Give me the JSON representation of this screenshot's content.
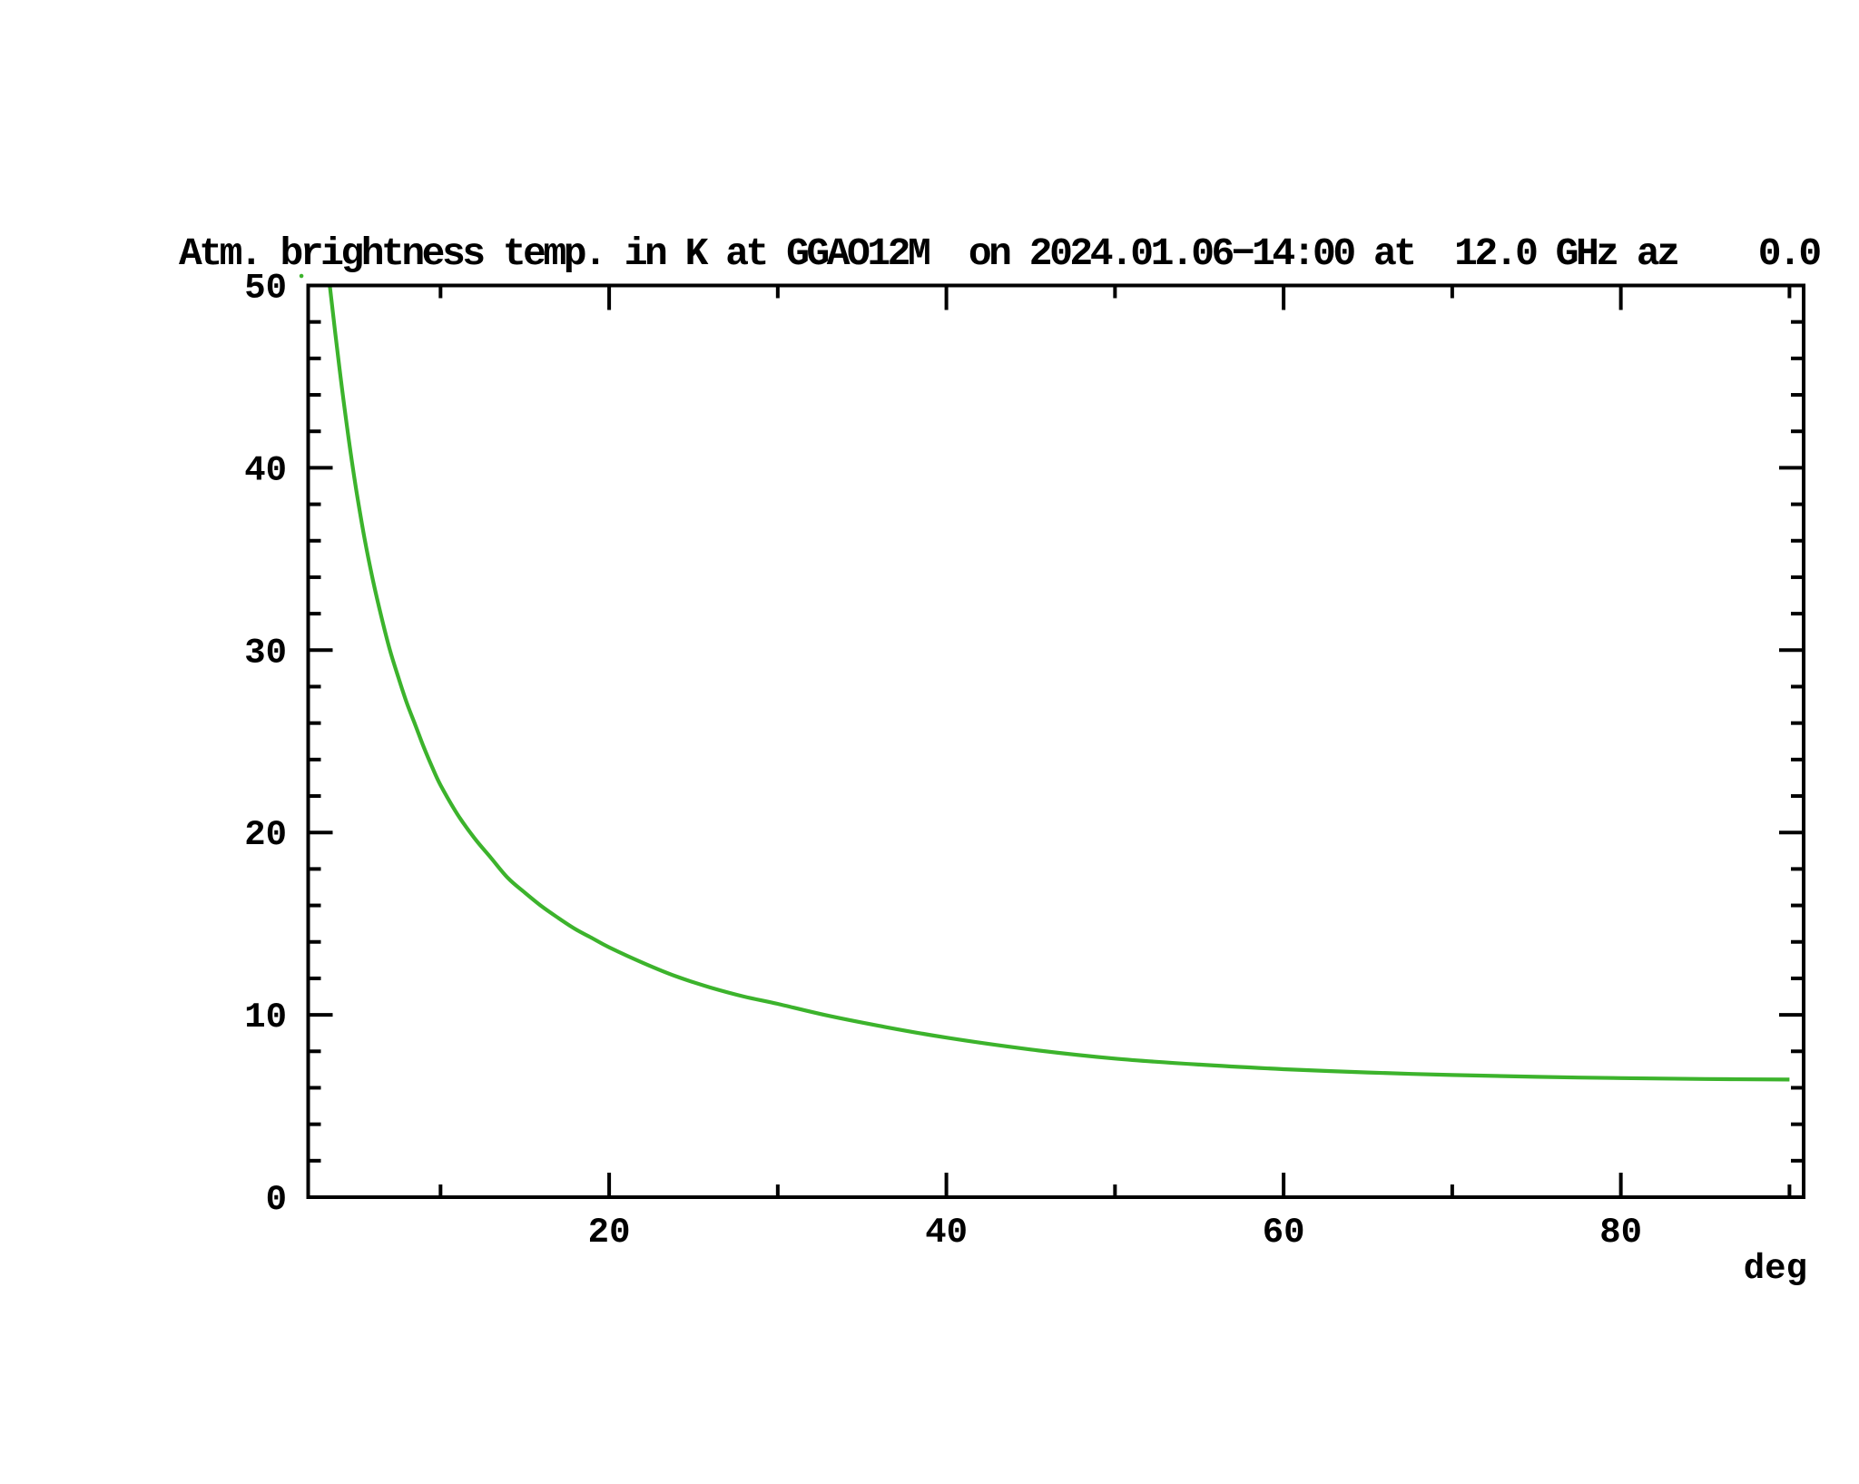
{
  "title": "Atm. brightness temp. in K at GGAO12M  on 2024.01.06−14:00 at  12.0 GHz az    0.0",
  "axis": {
    "x_unit_label": "deg",
    "x_major_tick_labels": [
      "20",
      "40",
      "60",
      "80"
    ],
    "y_major_tick_labels": [
      "0",
      "10",
      "20",
      "30",
      "40",
      "50"
    ]
  },
  "colors": {
    "curve_green": "#3cb32c",
    "frame_black": "#000000",
    "background": "#ffffff"
  },
  "stray_dot": {
    "el": 1.75,
    "t": 50.52
  },
  "chart_data": {
    "type": "line",
    "title": "Atm. brightness temp. in K at GGAO12M  on 2024.01.06−14:00 at  12.0 GHz az    0.0",
    "xlabel": "deg",
    "ylabel": "",
    "xlim": [
      2.15,
      90.84
    ],
    "ylim": [
      0,
      50
    ],
    "x_ticks_major": [
      20,
      40,
      60,
      80
    ],
    "x_ticks_minor": [
      10,
      30,
      50,
      70,
      90
    ],
    "y_ticks_major": [
      0,
      10,
      20,
      30,
      40,
      50
    ],
    "y_ticks_minor": [
      2,
      4,
      6,
      8,
      12,
      14,
      16,
      18,
      22,
      24,
      26,
      28,
      32,
      34,
      36,
      38,
      42,
      44,
      46,
      48
    ],
    "grid": false,
    "legend": "none",
    "series": [
      {
        "name": "atmospheric brightness temperature (K) vs elevation (deg)",
        "x": [
          3.43,
          4.0,
          4.55,
          5.0,
          5.5,
          6.0,
          6.5,
          7.0,
          7.5,
          8.0,
          8.5,
          9.0,
          9.5,
          10,
          11,
          12,
          13,
          14,
          15,
          16,
          17,
          18,
          19,
          20,
          22,
          24,
          26,
          28,
          30,
          33,
          36,
          40,
          45,
          50,
          55,
          60,
          65,
          70,
          75,
          80,
          85,
          90
        ],
        "y": [
          50.0,
          45.5,
          41.6,
          38.8,
          36.1,
          33.8,
          31.8,
          30.0,
          28.5,
          27.1,
          25.9,
          24.7,
          23.6,
          22.6,
          21.0,
          19.7,
          18.6,
          17.5,
          16.7,
          15.95,
          15.3,
          14.7,
          14.2,
          13.7,
          12.85,
          12.1,
          11.5,
          11.0,
          10.6,
          9.95,
          9.4,
          8.75,
          8.1,
          7.6,
          7.27,
          7.02,
          6.84,
          6.7,
          6.6,
          6.53,
          6.48,
          6.45
        ]
      }
    ]
  }
}
